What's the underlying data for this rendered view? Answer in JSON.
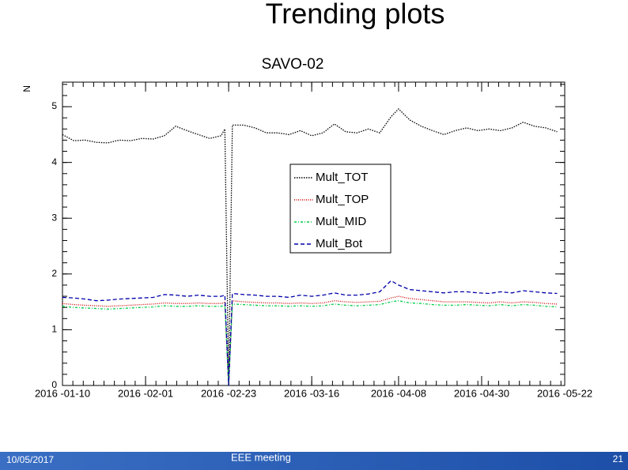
{
  "slide": {
    "title": "Trending plots",
    "footer": {
      "date": "10/05/2017",
      "event": "EEE meeting",
      "page": "21"
    }
  },
  "chart_data": {
    "type": "line",
    "title": "SAVO-02",
    "y_label": "N",
    "x": [
      "2016-01-10",
      "2016-01-13",
      "2016-01-16",
      "2016-01-19",
      "2016-01-22",
      "2016-01-25",
      "2016-01-28",
      "2016-01-31",
      "2016-02-03",
      "2016-02-06",
      "2016-02-09",
      "2016-02-12",
      "2016-02-15",
      "2016-02-18",
      "2016-02-21",
      "2016-02-22",
      "2016-02-23",
      "2016-02-24",
      "2016-02-27",
      "2016-03-01",
      "2016-03-04",
      "2016-03-07",
      "2016-03-10",
      "2016-03-13",
      "2016-03-16",
      "2016-03-19",
      "2016-03-22",
      "2016-03-25",
      "2016-03-28",
      "2016-03-31",
      "2016-04-03",
      "2016-04-06",
      "2016-04-08",
      "2016-04-11",
      "2016-04-14",
      "2016-04-17",
      "2016-04-20",
      "2016-04-23",
      "2016-04-26",
      "2016-04-29",
      "2016-05-02",
      "2016-05-05",
      "2016-05-08",
      "2016-05-11",
      "2016-05-14",
      "2016-05-17",
      "2016-05-20"
    ],
    "series": [
      {
        "name": "Mult_TOT",
        "color": "#000000",
        "values": [
          4.5,
          4.39,
          4.4,
          4.36,
          4.35,
          4.4,
          4.39,
          4.43,
          4.42,
          4.48,
          4.65,
          4.57,
          4.5,
          4.43,
          4.48,
          4.6,
          0,
          4.67,
          4.67,
          4.62,
          4.53,
          4.53,
          4.5,
          4.57,
          4.48,
          4.53,
          4.69,
          4.55,
          4.53,
          4.6,
          4.53,
          4.82,
          4.96,
          4.76,
          4.65,
          4.57,
          4.5,
          4.57,
          4.62,
          4.57,
          4.6,
          4.57,
          4.62,
          4.72,
          4.65,
          4.62,
          4.55
        ]
      },
      {
        "name": "Mult_TOP",
        "color": "#cc0000",
        "values": [
          1.47,
          1.45,
          1.44,
          1.43,
          1.42,
          1.43,
          1.44,
          1.45,
          1.46,
          1.48,
          1.47,
          1.47,
          1.48,
          1.47,
          1.47,
          1.49,
          0,
          1.52,
          1.5,
          1.49,
          1.48,
          1.48,
          1.47,
          1.48,
          1.47,
          1.48,
          1.52,
          1.5,
          1.49,
          1.5,
          1.51,
          1.57,
          1.6,
          1.56,
          1.54,
          1.52,
          1.5,
          1.5,
          1.5,
          1.49,
          1.48,
          1.5,
          1.48,
          1.5,
          1.49,
          1.47,
          1.46
        ]
      },
      {
        "name": "Mult_MID",
        "color": "#00cc44",
        "values": [
          1.42,
          1.4,
          1.39,
          1.38,
          1.37,
          1.38,
          1.39,
          1.4,
          1.41,
          1.43,
          1.42,
          1.42,
          1.43,
          1.42,
          1.42,
          1.44,
          0,
          1.46,
          1.45,
          1.44,
          1.43,
          1.43,
          1.42,
          1.43,
          1.42,
          1.43,
          1.46,
          1.44,
          1.43,
          1.44,
          1.45,
          1.5,
          1.52,
          1.48,
          1.47,
          1.45,
          1.44,
          1.44,
          1.45,
          1.44,
          1.43,
          1.45,
          1.43,
          1.45,
          1.44,
          1.42,
          1.41
        ]
      },
      {
        "name": "Mult_Bot",
        "color": "#0000aa",
        "values": [
          1.58,
          1.57,
          1.55,
          1.52,
          1.53,
          1.55,
          1.56,
          1.57,
          1.58,
          1.63,
          1.62,
          1.6,
          1.62,
          1.6,
          1.6,
          1.62,
          0,
          1.65,
          1.63,
          1.62,
          1.6,
          1.6,
          1.58,
          1.62,
          1.6,
          1.62,
          1.66,
          1.62,
          1.62,
          1.64,
          1.68,
          1.88,
          1.8,
          1.72,
          1.7,
          1.68,
          1.66,
          1.68,
          1.68,
          1.66,
          1.65,
          1.68,
          1.66,
          1.7,
          1.68,
          1.66,
          1.65
        ]
      }
    ],
    "xlim": [
      "2016-01-10",
      "2016-05-22"
    ],
    "xticks": [
      {
        "value": "2016-01-10",
        "label": "2016 -01-10"
      },
      {
        "value": "2016-02-01",
        "label": "2016 -02-01"
      },
      {
        "value": "2016-02-23",
        "label": "2016 -02-23"
      },
      {
        "value": "2016-03-16",
        "label": "2016 -03-16"
      },
      {
        "value": "2016-04-08",
        "label": "2016 -04-08"
      },
      {
        "value": "2016-04-30",
        "label": "2016 -04-30"
      },
      {
        "value": "2016-05-22",
        "label": "2016 -05-22"
      }
    ],
    "ylim": [
      0,
      5.44
    ],
    "yticks": [
      0,
      1,
      2,
      3,
      4,
      5
    ]
  }
}
